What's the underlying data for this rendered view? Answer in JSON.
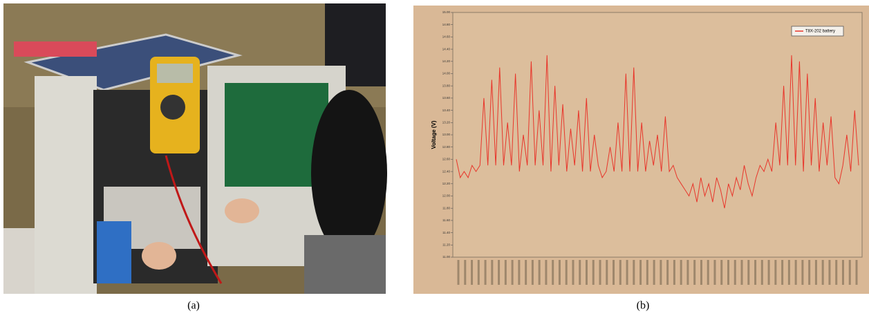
{
  "labels": [
    "(a)",
    "(b)"
  ],
  "chart_data": {
    "type": "line",
    "ylabel": "Voltage (V)",
    "series": [
      {
        "name": "T8X-202 battery",
        "color": "#e8352a",
        "values": [
          12.6,
          12.3,
          12.4,
          12.3,
          12.5,
          12.4,
          12.5,
          13.6,
          12.5,
          13.9,
          12.5,
          14.1,
          12.5,
          13.2,
          12.5,
          14.0,
          12.4,
          13.0,
          12.5,
          14.2,
          12.5,
          13.4,
          12.5,
          14.3,
          12.4,
          13.8,
          12.5,
          13.5,
          12.4,
          13.1,
          12.5,
          13.4,
          12.4,
          13.6,
          12.4,
          13.0,
          12.5,
          12.3,
          12.4,
          12.8,
          12.4,
          13.2,
          12.4,
          14.0,
          12.4,
          14.1,
          12.4,
          13.2,
          12.4,
          12.9,
          12.5,
          13.0,
          12.4,
          13.3,
          12.4,
          12.5,
          12.3,
          12.2,
          12.1,
          12.0,
          12.2,
          11.9,
          12.3,
          12.0,
          12.2,
          11.9,
          12.3,
          12.1,
          11.8,
          12.2,
          12.0,
          12.3,
          12.1,
          12.5,
          12.2,
          12.0,
          12.3,
          12.5,
          12.4,
          12.6,
          12.4,
          13.2,
          12.5,
          13.8,
          12.5,
          14.3,
          12.5,
          14.2,
          12.4,
          14.0,
          12.5,
          13.6,
          12.4,
          13.2,
          12.5,
          13.3,
          12.3,
          12.2,
          12.5,
          13.0,
          12.4,
          13.4,
          12.5
        ]
      }
    ],
    "ylim": [
      11,
      15
    ],
    "yticks": [
      {
        "value": 11,
        "label": "11.00"
      },
      {
        "value": 11.2,
        "label": "11.20"
      },
      {
        "value": 11.4,
        "label": "11.40"
      },
      {
        "value": 11.6,
        "label": "11.60"
      },
      {
        "value": 11.8,
        "label": "11.80"
      },
      {
        "value": 12,
        "label": "12.00"
      },
      {
        "value": 12.2,
        "label": "12.20"
      },
      {
        "value": 12.4,
        "label": "12.40"
      },
      {
        "value": 12.6,
        "label": "12.60"
      },
      {
        "value": 12.8,
        "label": "12.80"
      },
      {
        "value": 13,
        "label": "13.00"
      },
      {
        "value": 13.2,
        "label": "13.20"
      },
      {
        "value": 13.4,
        "label": "13.40"
      },
      {
        "value": 13.6,
        "label": "13.60"
      },
      {
        "value": 13.8,
        "label": "13.80"
      },
      {
        "value": 14,
        "label": "14.00"
      },
      {
        "value": 14.2,
        "label": "14.20"
      },
      {
        "value": 14.4,
        "label": "14.40"
      },
      {
        "value": 14.6,
        "label": "14.60"
      },
      {
        "value": 14.8,
        "label": "14.80"
      },
      {
        "value": 15,
        "label": "15.00"
      }
    ],
    "legend": "upper right",
    "grid": false
  }
}
